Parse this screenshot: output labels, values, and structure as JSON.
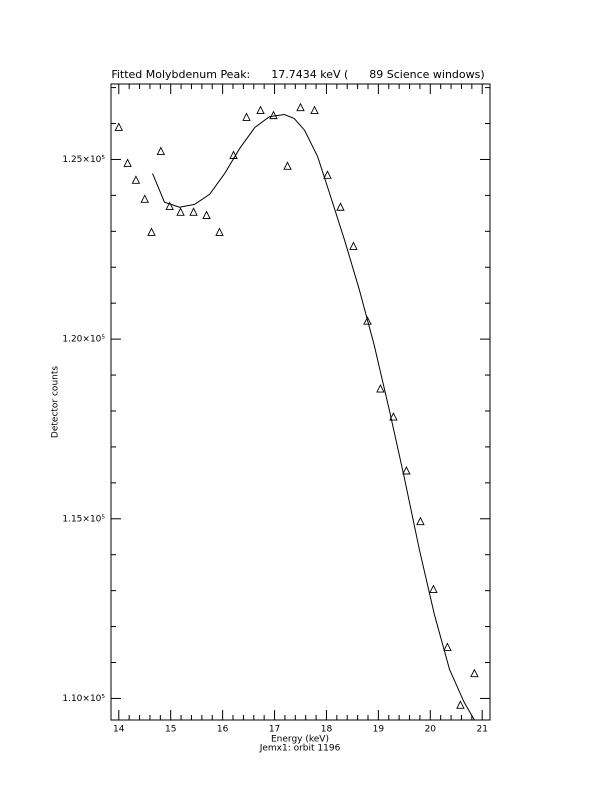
{
  "chart_data": {
    "type": "scatter",
    "title": "Fitted Molybdenum Peak:      17.7434 keV (      89 Science windows)",
    "xlabel": "Energy (keV)",
    "ylabel": "Detector counts",
    "footer": "Jemx1: orbit 1196",
    "color": "#000000",
    "xlim": [
      13.85,
      21.15
    ],
    "ylim": [
      109400,
      127100
    ],
    "xticks": [
      14,
      15,
      16,
      17,
      18,
      19,
      20,
      21
    ],
    "yticks": [
      {
        "value": 110000,
        "label": "1.10×10⁵"
      },
      {
        "value": 115000,
        "label": "1.15×10⁵"
      },
      {
        "value": 120000,
        "label": "1.20×10⁵"
      },
      {
        "value": 125000,
        "label": "1.25×10⁵"
      }
    ],
    "xminorticks": [
      14.2,
      14.4,
      14.6,
      14.8,
      15.2,
      15.4,
      15.6,
      15.8,
      16.2,
      16.4,
      16.6,
      16.8,
      17.2,
      17.4,
      17.6,
      17.8,
      18.2,
      18.4,
      18.6,
      18.8,
      19.2,
      19.4,
      19.6,
      19.8,
      20.2,
      20.4,
      20.6,
      20.8
    ],
    "yminorticks": [
      111000,
      112000,
      113000,
      114000,
      116000,
      117000,
      118000,
      119000,
      121000,
      122000,
      123000,
      124000,
      126000,
      127000
    ],
    "series": [
      {
        "marker": "triangle",
        "x": [
          14.0,
          14.17,
          14.33,
          14.5,
          14.63,
          14.81,
          14.98,
          15.19,
          15.44,
          15.69,
          15.94,
          16.21,
          16.46,
          16.73,
          16.98,
          17.25,
          17.5,
          17.77,
          18.02,
          18.27,
          18.52,
          18.79,
          19.04,
          19.29,
          19.54,
          19.81,
          20.06,
          20.33,
          20.58,
          20.85
        ],
        "values": [
          125890,
          124890,
          124420,
          123890,
          122970,
          125220,
          123690,
          123530,
          123530,
          123440,
          122970,
          125110,
          126170,
          126360,
          126220,
          124810,
          126440,
          126360,
          124560,
          123670,
          122580,
          120500,
          118610,
          117830,
          116330,
          114920,
          113030,
          111420,
          109810,
          110690
        ]
      },
      {
        "marker": "line",
        "x": [
          14.65,
          14.88,
          15.17,
          15.46,
          15.75,
          16.04,
          16.33,
          16.62,
          16.9,
          17.19,
          17.38,
          17.58,
          17.83,
          18.06,
          18.35,
          18.63,
          18.92,
          19.21,
          19.5,
          19.79,
          20.08,
          20.37,
          20.65,
          20.85
        ],
        "values": [
          124610,
          123810,
          123670,
          123750,
          124030,
          124610,
          125310,
          125890,
          126190,
          126250,
          126140,
          125810,
          125080,
          124060,
          122750,
          121390,
          119830,
          118030,
          116140,
          114140,
          112330,
          110810,
          109900,
          109400
        ]
      }
    ]
  }
}
